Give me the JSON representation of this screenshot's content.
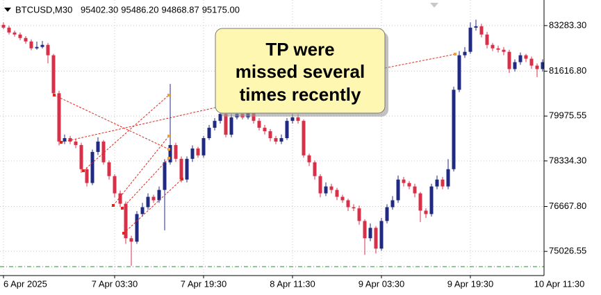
{
  "chart_data": {
    "type": "candlestick",
    "header": {
      "symbol": "BTCUSD,M30",
      "prices": [
        "95402.30",
        "95486.20",
        "94868.87",
        "95175.00"
      ]
    },
    "annotation": [
      "TP were",
      "missed several",
      "times recently"
    ],
    "bull_color": "#1f2a80",
    "bear_color": "#d9304a",
    "level_color": "#2e8b3a",
    "level_line": 74470,
    "grid": true,
    "xlim": [
      -0.625,
      97.25
    ],
    "xticks": [
      {
        "value": 0,
        "label": "6 Apr 2025"
      },
      {
        "value": 20,
        "label": "7 Apr 03:30"
      },
      {
        "value": 36,
        "label": "7 Apr 19:30"
      },
      {
        "value": 52,
        "label": "8 Apr 11:30"
      },
      {
        "value": 68,
        "label": "9 Apr 03:30"
      },
      {
        "value": 84,
        "label": "9 Apr 19:30"
      },
      {
        "value": 100,
        "label": "10 Apr 11:30"
      }
    ],
    "ylim": [
      74193,
      84016
    ],
    "yticks": [
      {
        "value": 75026.55,
        "label": "75026.55"
      },
      {
        "value": 76667.8,
        "label": "76667.80"
      },
      {
        "value": 78334.3,
        "label": "78334.30"
      },
      {
        "value": 79975.55,
        "label": "79975.55"
      },
      {
        "value": 81616.8,
        "label": "81616.80"
      },
      {
        "value": 83283.3,
        "label": "83283.30"
      }
    ],
    "open": [
      83310,
      83208,
      83031,
      82956,
      82829,
      82703,
      82451,
      82501,
      82577,
      82198,
      80809,
      79042,
      79168,
      79042,
      78916,
      78032,
      77527,
      78663,
      79042,
      78284,
      77779,
      77148,
      76769,
      75507,
      75381,
      76391,
      76643,
      77022,
      76896,
      77274,
      78284,
      78916,
      78411,
      77653,
      78411,
      78789,
      78537,
      79168,
      79547,
      79799,
      80052,
      79294,
      79926,
      80052,
      79926,
      80178,
      79799,
      79547,
      79421,
      79168,
      79042,
      79168,
      79799,
      79926,
      79799,
      78537,
      78284,
      77779,
      77148,
      77401,
      77274,
      77022,
      76896,
      76643,
      76600,
      76138,
      75507,
      75886,
      75128,
      76138,
      76643,
      76896,
      77653,
      77527,
      77401,
      77148,
      76517,
      76391,
      77401,
      77653,
      77401,
      78032,
      80936,
      82198,
      82324,
      83208,
      83259,
      82956,
      82577,
      82451,
      82400,
      82324,
      81693,
      81946,
      82198,
      82072,
      81819,
      81693
    ],
    "high": [
      83400,
      83280,
      83100,
      83030,
      82900,
      82780,
      82700,
      82720,
      82650,
      82250,
      80900,
      79300,
      79250,
      79150,
      79000,
      78100,
      78750,
      79200,
      79100,
      78350,
      77850,
      77250,
      76850,
      75600,
      76500,
      76800,
      77150,
      77100,
      77400,
      78400,
      81150,
      79000,
      78500,
      78500,
      78900,
      78850,
      79250,
      79650,
      79900,
      80150,
      80100,
      80050,
      80200,
      80150,
      80300,
      80250,
      79900,
      79650,
      79500,
      79250,
      79300,
      79900,
      80050,
      80050,
      79850,
      78600,
      78350,
      77850,
      77550,
      77500,
      77350,
      77100,
      76950,
      76750,
      76700,
      76200,
      76050,
      75950,
      76250,
      76750,
      77050,
      77800,
      77750,
      77600,
      77500,
      77200,
      76600,
      77500,
      77800,
      77750,
      78400,
      81050,
      82350,
      82500,
      83400,
      83500,
      83350,
      83050,
      82650,
      82550,
      82500,
      82400,
      82050,
      82300,
      82250,
      82150,
      81900,
      82050
    ],
    "low": [
      83150,
      82960,
      82880,
      82750,
      82620,
      82380,
      82400,
      82450,
      81900,
      80700,
      78900,
      78950,
      78950,
      78800,
      77900,
      77400,
      77450,
      78550,
      78200,
      77650,
      77000,
      76650,
      75300,
      74500,
      75300,
      76300,
      76550,
      76800,
      76800,
      75800,
      78200,
      78300,
      77550,
      77550,
      78300,
      78450,
      78450,
      79100,
      79450,
      79700,
      79200,
      79200,
      79850,
      79850,
      79850,
      79700,
      79450,
      79300,
      79050,
      78950,
      78950,
      79100,
      79700,
      79700,
      78450,
      78150,
      77650,
      77000,
      77050,
      77150,
      76900,
      76800,
      76500,
      76500,
      76000,
      74900,
      75400,
      74950,
      75050,
      76050,
      76550,
      76800,
      77400,
      77300,
      77000,
      76100,
      76250,
      76300,
      77300,
      77300,
      77300,
      77950,
      80850,
      82100,
      82250,
      83100,
      82850,
      82450,
      82350,
      82300,
      82200,
      81550,
      81600,
      81850,
      81950,
      81700,
      81400,
      81600
    ],
    "close": [
      83208,
      83031,
      82956,
      82829,
      82703,
      82451,
      82501,
      82577,
      82198,
      80809,
      79042,
      79168,
      79042,
      78916,
      78032,
      77527,
      78663,
      79042,
      78284,
      77779,
      77148,
      76769,
      75507,
      75381,
      76391,
      76643,
      77022,
      76896,
      77274,
      78284,
      78916,
      78411,
      77653,
      78411,
      78789,
      78537,
      79168,
      79547,
      79799,
      80052,
      79294,
      79926,
      80052,
      79926,
      80178,
      79799,
      79547,
      79421,
      79168,
      79042,
      79168,
      79799,
      79926,
      79799,
      78537,
      78284,
      77779,
      77148,
      77401,
      77274,
      77022,
      76896,
      76643,
      76600,
      76138,
      75507,
      75886,
      75128,
      76138,
      76643,
      76896,
      77653,
      77527,
      77401,
      77148,
      76517,
      76391,
      77401,
      77653,
      77401,
      78032,
      80936,
      82198,
      82324,
      83208,
      83259,
      82956,
      82577,
      82451,
      82400,
      82324,
      81693,
      81946,
      82198,
      82072,
      81819,
      81693,
      81946
    ]
  }
}
